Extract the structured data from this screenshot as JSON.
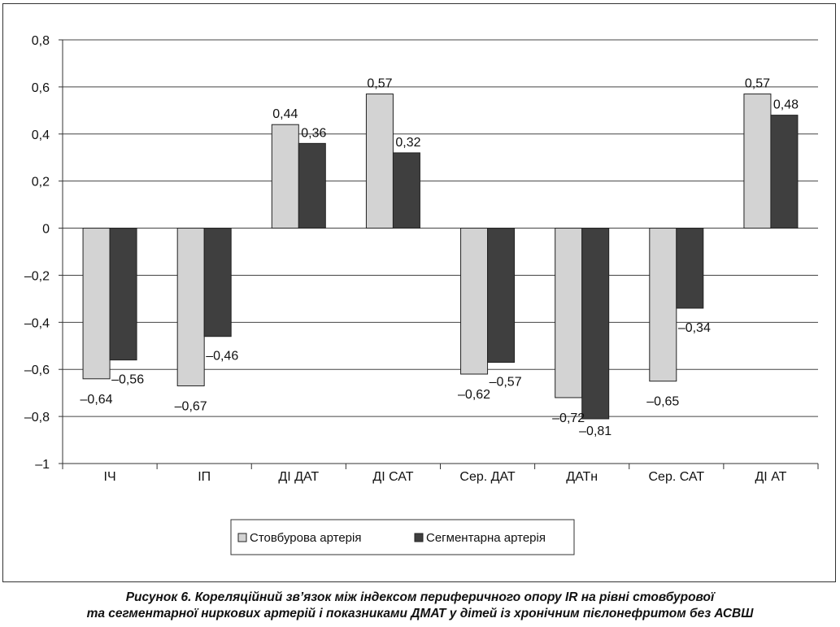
{
  "chart_data": {
    "type": "bar",
    "categories": [
      "ІЧ",
      "ІП",
      "ДІ ДАТ",
      "ДІ САТ",
      "Сер. ДАТ",
      "ДАТн",
      "Сер. САТ",
      "ДІ АТ"
    ],
    "series": [
      {
        "name": "Стовбурова артерія",
        "values": [
          -0.64,
          -0.67,
          0.44,
          0.57,
          -0.62,
          -0.72,
          -0.65,
          0.57
        ],
        "labels": [
          "–0,64",
          "–0,67",
          "0,44",
          "0,57",
          "–0,62",
          "–0,72",
          "–0,65",
          "0,57"
        ],
        "color": "#d3d3d3"
      },
      {
        "name": "Сегментарна артерія",
        "values": [
          -0.56,
          -0.46,
          0.36,
          0.32,
          -0.57,
          -0.81,
          -0.34,
          0.48
        ],
        "labels": [
          "–0,56",
          "–0,46",
          "0,36",
          "0,32",
          "–0,57",
          "–0,81",
          "–0,34",
          "0,48"
        ],
        "color": "#3f3f3f"
      }
    ],
    "ylim": [
      -1,
      0.8
    ],
    "yticks": [
      0.8,
      0.6,
      0.4,
      0.2,
      0,
      -0.2,
      -0.4,
      -0.6,
      -0.8,
      -1
    ],
    "ytick_labels": [
      "0,8",
      "0,6",
      "0,4",
      "0,2",
      "0",
      "–0,2",
      "–0,4",
      "–0,6",
      "–0,8",
      "–1"
    ],
    "grid": true,
    "legend_position": "bottom-center"
  },
  "caption": {
    "line1": "Рисунок 6. Кореляційний зв’язок між індексом периферичного опору IR на рівні стовбурової",
    "line2": "та сегментарної ниркових артерій і показниками ДМАТ у дітей із хронічним пієлонефритом без АСВШ"
  }
}
